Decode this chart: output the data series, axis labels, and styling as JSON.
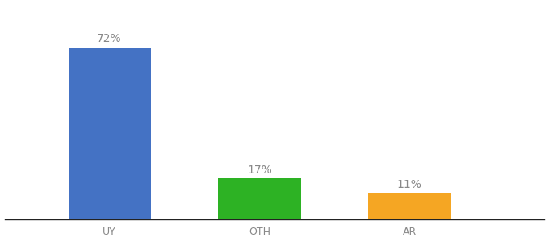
{
  "categories": [
    "UY",
    "OTH",
    "AR"
  ],
  "values": [
    72,
    17,
    11
  ],
  "labels": [
    "72%",
    "17%",
    "11%"
  ],
  "bar_colors": [
    "#4472c4",
    "#2db224",
    "#f5a623"
  ],
  "background_color": "#ffffff",
  "text_color": "#888888",
  "label_fontsize": 10,
  "tick_fontsize": 9,
  "ylim": [
    0,
    90
  ],
  "bar_width": 0.55,
  "x_positions": [
    1.0,
    2.0,
    3.0
  ],
  "xlim": [
    0.3,
    3.9
  ]
}
